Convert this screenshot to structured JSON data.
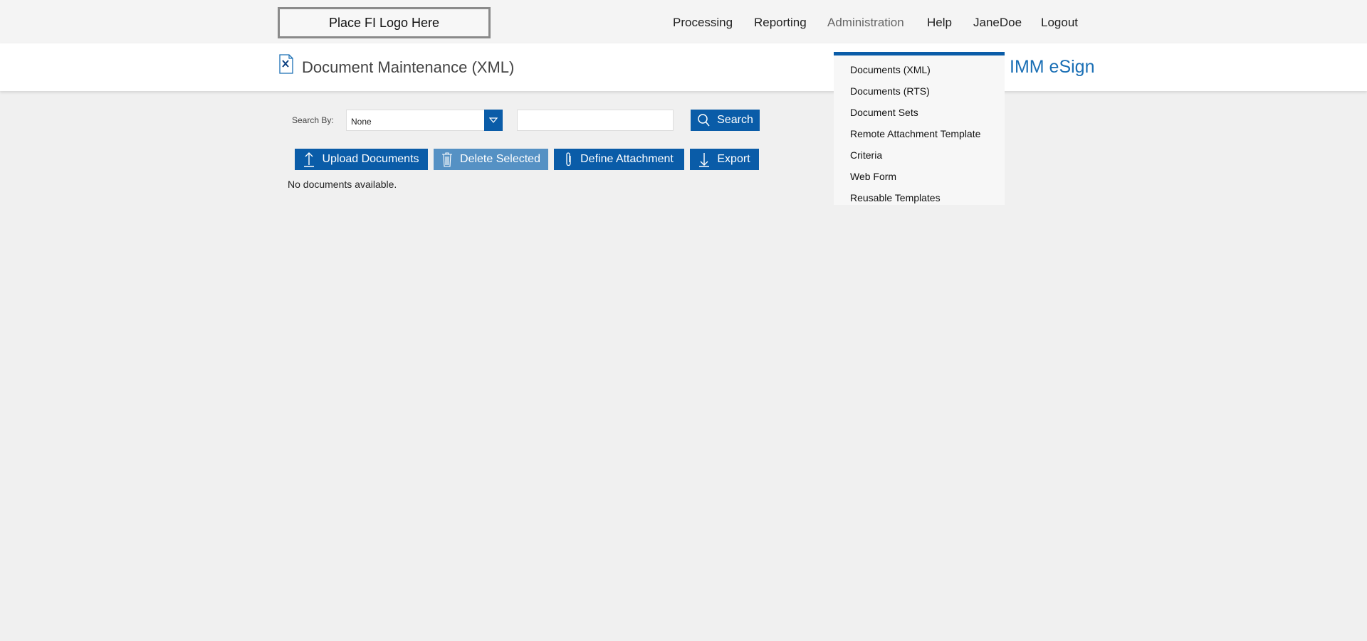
{
  "topbar": {
    "logo_text": "Place FI Logo Here",
    "nav": [
      "Processing",
      "Reporting",
      "Administration",
      "Help",
      "JaneDoe",
      "Logout"
    ]
  },
  "header": {
    "title": "Document Maintenance (XML)",
    "brand": "IMM eSign",
    "title_icon": "document-tools-icon"
  },
  "admin_menu": {
    "items": [
      "Documents (XML)",
      "Documents (RTS)",
      "Document Sets",
      "Remote Attachment Template",
      "Criteria",
      "Web Form",
      "Reusable Templates"
    ]
  },
  "search": {
    "label": "Search By:",
    "selected": "None",
    "query": "",
    "button": "Search"
  },
  "actions": {
    "upload": "Upload Documents",
    "delete": "Delete Selected",
    "define": "Define Attachment",
    "export": "Export"
  },
  "empty_message": "No documents available.",
  "colors": {
    "accent": "#0a5ca8",
    "disabled": "#5591c4",
    "brand": "#1a6fb5"
  }
}
